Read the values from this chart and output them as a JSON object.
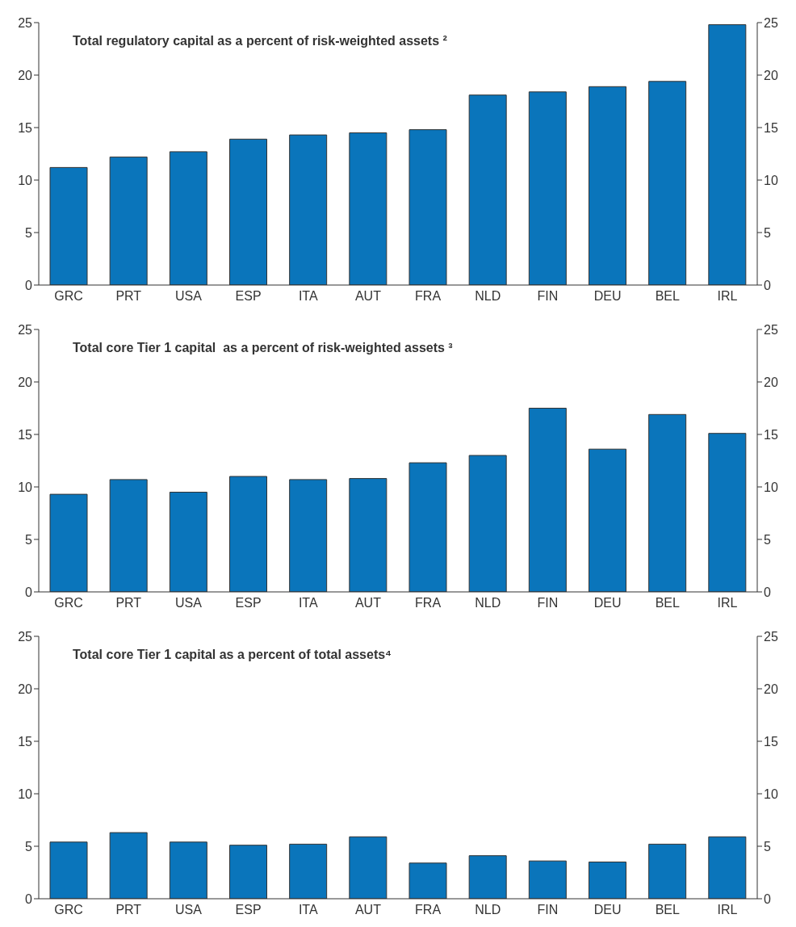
{
  "chart_data": [
    {
      "type": "bar",
      "title": "Total regulatory capital as a percent of risk-weighted assets ²",
      "categories": [
        "GRC",
        "PRT",
        "USA",
        "ESP",
        "ITA",
        "AUT",
        "FRA",
        "NLD",
        "FIN",
        "DEU",
        "BEL",
        "IRL"
      ],
      "values": [
        11.2,
        12.2,
        12.7,
        13.9,
        14.3,
        14.5,
        14.8,
        18.1,
        18.4,
        18.9,
        19.4,
        24.8
      ],
      "color": "#0a75bb",
      "ylim": [
        0,
        25
      ],
      "yticks": [
        0,
        5,
        10,
        15,
        20,
        25
      ],
      "y2lim": [
        0,
        25
      ],
      "y2ticks": [
        0,
        5,
        10,
        15,
        20,
        25
      ],
      "grid": false,
      "legend": false
    },
    {
      "type": "bar",
      "title": "Total core Tier 1 capital  as a percent of risk-weighted assets ³",
      "categories": [
        "GRC",
        "PRT",
        "USA",
        "ESP",
        "ITA",
        "AUT",
        "FRA",
        "NLD",
        "FIN",
        "DEU",
        "BEL",
        "IRL"
      ],
      "values": [
        9.3,
        10.7,
        9.5,
        11.0,
        10.7,
        10.8,
        12.3,
        13.0,
        17.5,
        13.6,
        16.9,
        15.1
      ],
      "color": "#0a75bb",
      "ylim": [
        0,
        25
      ],
      "yticks": [
        0,
        5,
        10,
        15,
        20,
        25
      ],
      "y2lim": [
        0,
        25
      ],
      "y2ticks": [
        0,
        5,
        10,
        15,
        20,
        25
      ],
      "grid": false,
      "legend": false
    },
    {
      "type": "bar",
      "title": "Total core Tier 1 capital as a percent of total assets⁴",
      "categories": [
        "GRC",
        "PRT",
        "USA",
        "ESP",
        "ITA",
        "AUT",
        "FRA",
        "NLD",
        "FIN",
        "DEU",
        "BEL",
        "IRL"
      ],
      "values": [
        5.4,
        6.3,
        5.4,
        5.1,
        5.2,
        5.9,
        3.4,
        4.1,
        3.6,
        3.5,
        5.2,
        5.9
      ],
      "color": "#0a75bb",
      "ylim": [
        0,
        25
      ],
      "yticks": [
        0,
        5,
        10,
        15,
        20,
        25
      ],
      "y2lim": [
        0,
        25
      ],
      "y2ticks": [
        0,
        5,
        10,
        15,
        20,
        25
      ],
      "grid": false,
      "legend": false
    }
  ]
}
